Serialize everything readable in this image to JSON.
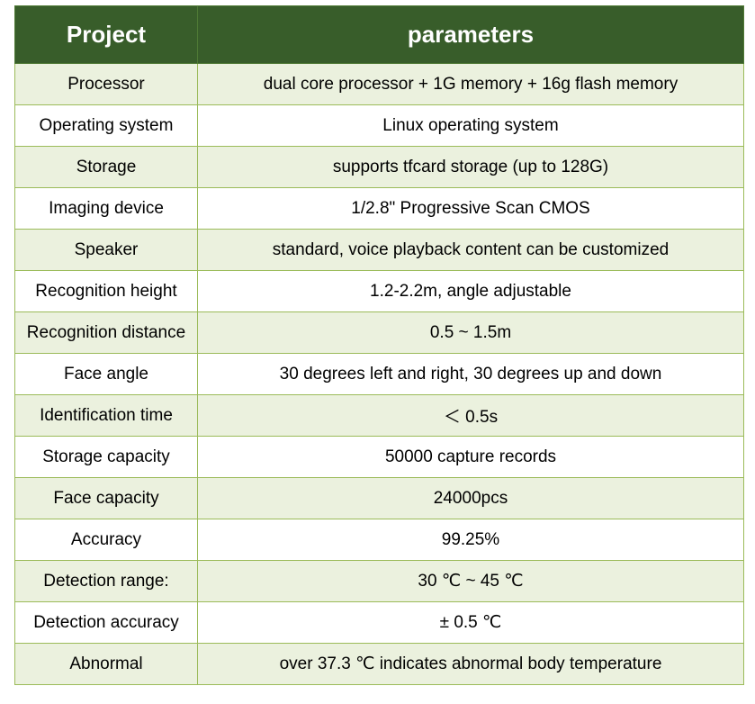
{
  "header": {
    "col1": "Project",
    "col2": "parameters"
  },
  "rows": [
    {
      "project": "Processor",
      "parameter": "dual core processor + 1G memory + 16g flash memory"
    },
    {
      "project": "Operating system",
      "parameter": "Linux operating system"
    },
    {
      "project": "Storage",
      "parameter": "supports tfcard storage (up to 128G)"
    },
    {
      "project": "Imaging device",
      "parameter": "1/2.8\" Progressive Scan CMOS"
    },
    {
      "project": "Speaker",
      "parameter": "standard, voice playback content can be customized"
    },
    {
      "project": "Recognition height",
      "parameter": "1.2-2.2m, angle adjustable"
    },
    {
      "project": "Recognition distance",
      "parameter": "0.5 ~ 1.5m"
    },
    {
      "project": "Face angle",
      "parameter": "30 degrees left and right, 30 degrees up and down"
    },
    {
      "project": "Identification time",
      "parameter": "＜ 0.5s"
    },
    {
      "project": "Storage capacity",
      "parameter": "50000 capture records"
    },
    {
      "project": "Face capacity",
      "parameter": "24000pcs"
    },
    {
      "project": "Accuracy",
      "parameter": "99.25%"
    },
    {
      "project": "Detection range:",
      "parameter": "30 ℃ ~ 45 ℃"
    },
    {
      "project": "Detection accuracy",
      "parameter": "± 0.5 ℃"
    },
    {
      "project": "Abnormal",
      "parameter": "over 37.3 ℃ indicates abnormal body temperature"
    }
  ],
  "colors": {
    "header_bg": "#385d2a",
    "header_text": "#ffffff",
    "odd_row_bg": "#ebf1de",
    "even_row_bg": "#ffffff",
    "border": "#9bbb59"
  }
}
